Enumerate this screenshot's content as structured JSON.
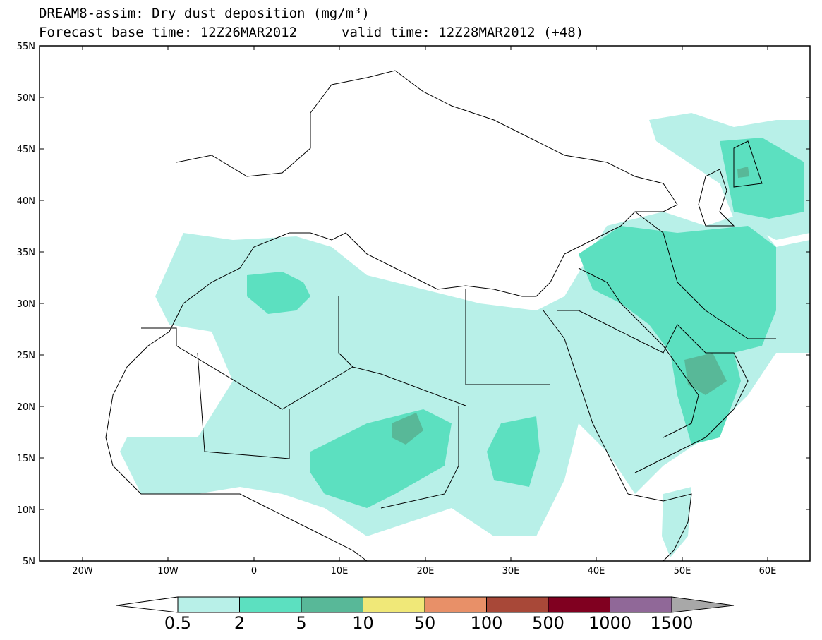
{
  "title": {
    "line1": "DREAM8-assim: Dry dust deposition (mg/m³)",
    "base_time": "Forecast base time: 12Z26MAR2012",
    "valid_time": "valid time: 12Z28MAR2012 (+48)"
  },
  "map": {
    "lat_labels": [
      "55N",
      "50N",
      "45N",
      "40N",
      "35N",
      "30N",
      "25N",
      "20N",
      "15N",
      "10N",
      "5N"
    ],
    "lon_labels": [
      "20W",
      "10W",
      "0",
      "10E",
      "20E",
      "30E",
      "40E",
      "50E",
      "60E"
    ],
    "colors": {
      "land_outline": "#000000",
      "frame": "#000000",
      "background": "#ffffff"
    }
  },
  "colorbar": {
    "labels": [
      "0.5",
      "2",
      "5",
      "10",
      "50",
      "100",
      "500",
      "1000",
      "1500"
    ],
    "colors": [
      "#ffffff",
      "#b8f0e8",
      "#5ce0c0",
      "#58b898",
      "#f0e878",
      "#e89068",
      "#a84838",
      "#800020",
      "#906898",
      "#a8a8a8"
    ]
  }
}
